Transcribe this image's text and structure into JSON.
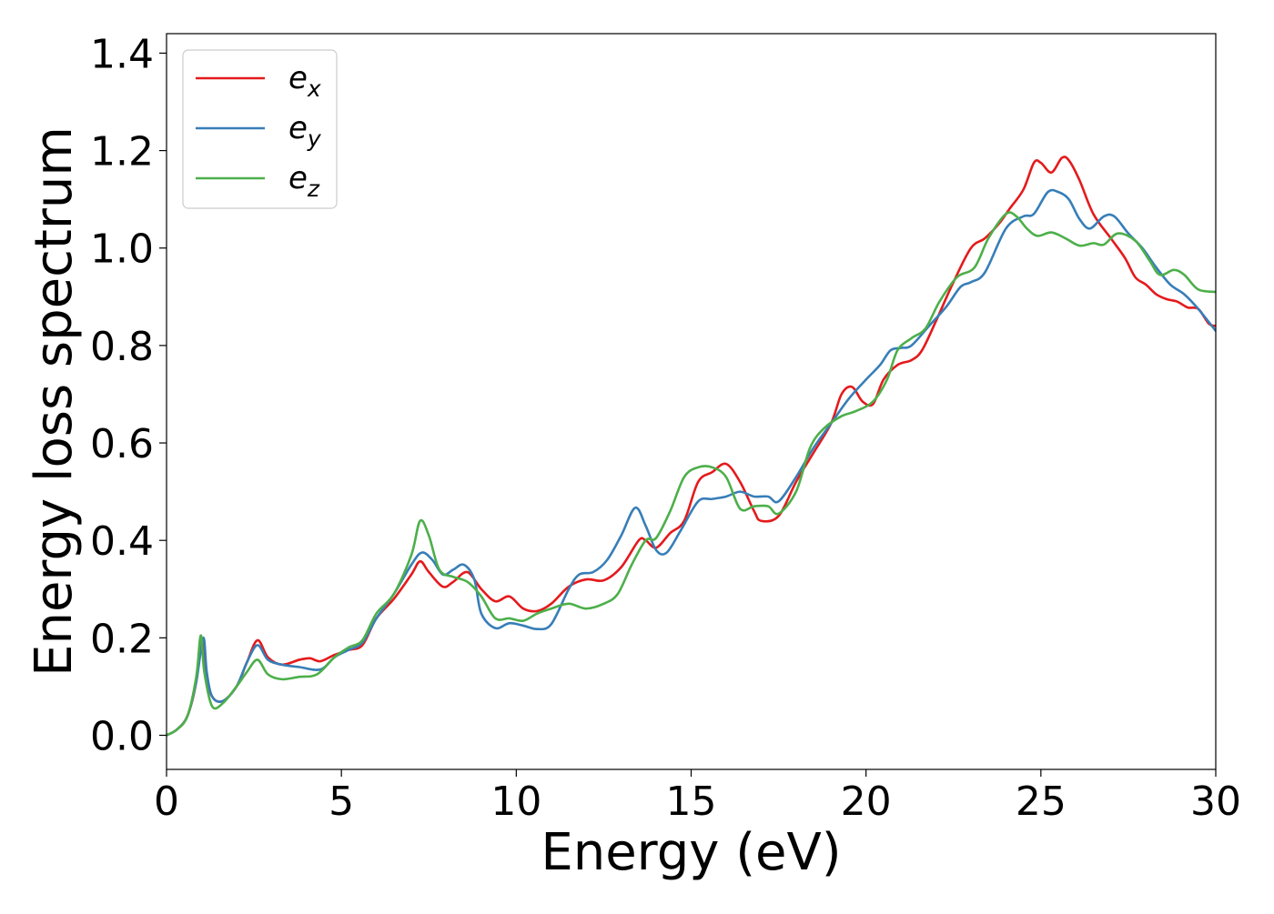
{
  "chart_data": {
    "type": "line",
    "xlabel": "Energy (eV)",
    "ylabel": "Energy loss spectrum",
    "xlim": [
      0,
      30
    ],
    "ylim": [
      -0.07,
      1.44
    ],
    "xticks": [
      "0",
      "5",
      "10",
      "15",
      "20",
      "25",
      "30"
    ],
    "yticks": [
      "0.0",
      "0.2",
      "0.4",
      "0.6",
      "0.8",
      "1.0",
      "1.2",
      "1.4"
    ],
    "grid": false,
    "legend_position": "upper-left",
    "series": [
      {
        "name": "e_x",
        "label_base": "e",
        "label_sub": "x",
        "color": "#e41a1c",
        "points": [
          [
            0,
            0
          ],
          [
            0.3,
            0.012
          ],
          [
            0.6,
            0.04
          ],
          [
            0.85,
            0.11
          ],
          [
            1.0,
            0.2
          ],
          [
            1.1,
            0.13
          ],
          [
            1.3,
            0.08
          ],
          [
            1.6,
            0.07
          ],
          [
            2.0,
            0.1
          ],
          [
            2.3,
            0.15
          ],
          [
            2.6,
            0.195
          ],
          [
            2.9,
            0.16
          ],
          [
            3.3,
            0.145
          ],
          [
            3.8,
            0.155
          ],
          [
            4.1,
            0.158
          ],
          [
            4.4,
            0.152
          ],
          [
            4.8,
            0.165
          ],
          [
            5.2,
            0.175
          ],
          [
            5.6,
            0.185
          ],
          [
            6.0,
            0.24
          ],
          [
            6.5,
            0.28
          ],
          [
            7.0,
            0.33
          ],
          [
            7.25,
            0.357
          ],
          [
            7.5,
            0.335
          ],
          [
            7.9,
            0.305
          ],
          [
            8.2,
            0.315
          ],
          [
            8.6,
            0.335
          ],
          [
            9.0,
            0.3
          ],
          [
            9.4,
            0.275
          ],
          [
            9.8,
            0.285
          ],
          [
            10.2,
            0.26
          ],
          [
            10.6,
            0.255
          ],
          [
            11.0,
            0.27
          ],
          [
            11.5,
            0.305
          ],
          [
            12.0,
            0.32
          ],
          [
            12.5,
            0.318
          ],
          [
            13.0,
            0.345
          ],
          [
            13.5,
            0.4
          ],
          [
            13.7,
            0.4
          ],
          [
            14.0,
            0.385
          ],
          [
            14.4,
            0.415
          ],
          [
            14.8,
            0.44
          ],
          [
            15.2,
            0.52
          ],
          [
            15.6,
            0.54
          ],
          [
            16.0,
            0.557
          ],
          [
            16.4,
            0.52
          ],
          [
            16.8,
            0.46
          ],
          [
            17.0,
            0.44
          ],
          [
            17.5,
            0.45
          ],
          [
            18.0,
            0.52
          ],
          [
            18.5,
            0.58
          ],
          [
            19.0,
            0.64
          ],
          [
            19.3,
            0.7
          ],
          [
            19.6,
            0.715
          ],
          [
            19.9,
            0.685
          ],
          [
            20.2,
            0.68
          ],
          [
            20.5,
            0.73
          ],
          [
            20.9,
            0.76
          ],
          [
            21.3,
            0.77
          ],
          [
            21.6,
            0.79
          ],
          [
            22.0,
            0.85
          ],
          [
            22.5,
            0.93
          ],
          [
            23.0,
            1.0
          ],
          [
            23.4,
            1.02
          ],
          [
            23.8,
            1.05
          ],
          [
            24.1,
            1.08
          ],
          [
            24.5,
            1.12
          ],
          [
            24.8,
            1.175
          ],
          [
            25.0,
            1.175
          ],
          [
            25.3,
            1.155
          ],
          [
            25.6,
            1.185
          ],
          [
            25.8,
            1.18
          ],
          [
            26.1,
            1.14
          ],
          [
            26.5,
            1.07
          ],
          [
            27.0,
            1.02
          ],
          [
            27.4,
            0.98
          ],
          [
            27.7,
            0.94
          ],
          [
            28.0,
            0.925
          ],
          [
            28.3,
            0.905
          ],
          [
            28.6,
            0.895
          ],
          [
            28.9,
            0.89
          ],
          [
            29.2,
            0.878
          ],
          [
            29.5,
            0.875
          ],
          [
            29.8,
            0.845
          ],
          [
            30.0,
            0.84
          ]
        ]
      },
      {
        "name": "e_y",
        "label_base": "e",
        "label_sub": "y",
        "color": "#377eb8",
        "points": [
          [
            0,
            0
          ],
          [
            0.3,
            0.012
          ],
          [
            0.6,
            0.04
          ],
          [
            0.85,
            0.11
          ],
          [
            1.05,
            0.2
          ],
          [
            1.15,
            0.13
          ],
          [
            1.3,
            0.08
          ],
          [
            1.6,
            0.07
          ],
          [
            2.0,
            0.1
          ],
          [
            2.3,
            0.15
          ],
          [
            2.6,
            0.185
          ],
          [
            2.9,
            0.155
          ],
          [
            3.3,
            0.145
          ],
          [
            3.8,
            0.14
          ],
          [
            4.4,
            0.135
          ],
          [
            4.8,
            0.16
          ],
          [
            5.2,
            0.175
          ],
          [
            5.6,
            0.19
          ],
          [
            6.0,
            0.24
          ],
          [
            6.5,
            0.29
          ],
          [
            7.0,
            0.35
          ],
          [
            7.3,
            0.375
          ],
          [
            7.6,
            0.36
          ],
          [
            7.9,
            0.33
          ],
          [
            8.2,
            0.34
          ],
          [
            8.5,
            0.35
          ],
          [
            8.8,
            0.32
          ],
          [
            9.0,
            0.25
          ],
          [
            9.4,
            0.22
          ],
          [
            9.8,
            0.23
          ],
          [
            10.2,
            0.225
          ],
          [
            10.6,
            0.218
          ],
          [
            11.0,
            0.228
          ],
          [
            11.5,
            0.3
          ],
          [
            11.8,
            0.33
          ],
          [
            12.2,
            0.335
          ],
          [
            12.6,
            0.36
          ],
          [
            13.0,
            0.41
          ],
          [
            13.4,
            0.467
          ],
          [
            13.7,
            0.43
          ],
          [
            14.0,
            0.38
          ],
          [
            14.3,
            0.375
          ],
          [
            14.7,
            0.42
          ],
          [
            15.2,
            0.48
          ],
          [
            15.6,
            0.485
          ],
          [
            16.0,
            0.49
          ],
          [
            16.4,
            0.5
          ],
          [
            16.8,
            0.49
          ],
          [
            17.2,
            0.49
          ],
          [
            17.5,
            0.48
          ],
          [
            18.0,
            0.53
          ],
          [
            18.5,
            0.59
          ],
          [
            19.0,
            0.64
          ],
          [
            19.5,
            0.69
          ],
          [
            20.0,
            0.73
          ],
          [
            20.4,
            0.76
          ],
          [
            20.7,
            0.79
          ],
          [
            21.0,
            0.795
          ],
          [
            21.3,
            0.8
          ],
          [
            21.8,
            0.84
          ],
          [
            22.3,
            0.88
          ],
          [
            22.7,
            0.92
          ],
          [
            23.0,
            0.93
          ],
          [
            23.4,
            0.95
          ],
          [
            24.0,
            1.04
          ],
          [
            24.5,
            1.065
          ],
          [
            24.8,
            1.07
          ],
          [
            25.2,
            1.115
          ],
          [
            25.5,
            1.115
          ],
          [
            25.8,
            1.1
          ],
          [
            26.1,
            1.06
          ],
          [
            26.4,
            1.04
          ],
          [
            26.8,
            1.065
          ],
          [
            27.1,
            1.065
          ],
          [
            27.5,
            1.03
          ],
          [
            27.9,
            1.0
          ],
          [
            28.3,
            0.96
          ],
          [
            28.7,
            0.925
          ],
          [
            29.1,
            0.905
          ],
          [
            29.5,
            0.875
          ],
          [
            30.0,
            0.83
          ]
        ]
      },
      {
        "name": "e_z",
        "label_base": "e",
        "label_sub": "z",
        "color": "#4daf4a",
        "points": [
          [
            0,
            0
          ],
          [
            0.3,
            0.012
          ],
          [
            0.6,
            0.04
          ],
          [
            0.85,
            0.12
          ],
          [
            0.98,
            0.205
          ],
          [
            1.08,
            0.13
          ],
          [
            1.3,
            0.06
          ],
          [
            1.6,
            0.065
          ],
          [
            2.0,
            0.1
          ],
          [
            2.3,
            0.13
          ],
          [
            2.6,
            0.155
          ],
          [
            2.9,
            0.125
          ],
          [
            3.3,
            0.115
          ],
          [
            3.8,
            0.12
          ],
          [
            4.3,
            0.125
          ],
          [
            4.8,
            0.16
          ],
          [
            5.2,
            0.18
          ],
          [
            5.6,
            0.195
          ],
          [
            6.0,
            0.25
          ],
          [
            6.5,
            0.29
          ],
          [
            7.0,
            0.37
          ],
          [
            7.25,
            0.44
          ],
          [
            7.5,
            0.41
          ],
          [
            7.8,
            0.34
          ],
          [
            8.2,
            0.325
          ],
          [
            8.6,
            0.315
          ],
          [
            9.0,
            0.285
          ],
          [
            9.4,
            0.24
          ],
          [
            9.8,
            0.24
          ],
          [
            10.2,
            0.235
          ],
          [
            10.6,
            0.25
          ],
          [
            11.0,
            0.26
          ],
          [
            11.5,
            0.27
          ],
          [
            12.0,
            0.26
          ],
          [
            12.5,
            0.27
          ],
          [
            12.9,
            0.29
          ],
          [
            13.3,
            0.35
          ],
          [
            13.7,
            0.4
          ],
          [
            14.0,
            0.405
          ],
          [
            14.4,
            0.46
          ],
          [
            14.8,
            0.53
          ],
          [
            15.2,
            0.55
          ],
          [
            15.6,
            0.55
          ],
          [
            16.0,
            0.53
          ],
          [
            16.4,
            0.465
          ],
          [
            16.8,
            0.47
          ],
          [
            17.2,
            0.47
          ],
          [
            17.5,
            0.455
          ],
          [
            18.0,
            0.5
          ],
          [
            18.4,
            0.59
          ],
          [
            18.8,
            0.63
          ],
          [
            19.3,
            0.655
          ],
          [
            19.7,
            0.665
          ],
          [
            20.2,
            0.685
          ],
          [
            20.6,
            0.73
          ],
          [
            20.9,
            0.79
          ],
          [
            21.3,
            0.815
          ],
          [
            21.7,
            0.835
          ],
          [
            22.1,
            0.89
          ],
          [
            22.6,
            0.94
          ],
          [
            23.1,
            0.96
          ],
          [
            23.5,
            1.02
          ],
          [
            24.0,
            1.07
          ],
          [
            24.3,
            1.065
          ],
          [
            24.6,
            1.04
          ],
          [
            24.9,
            1.025
          ],
          [
            25.3,
            1.032
          ],
          [
            25.7,
            1.02
          ],
          [
            26.1,
            1.005
          ],
          [
            26.5,
            1.01
          ],
          [
            26.8,
            1.007
          ],
          [
            27.2,
            1.03
          ],
          [
            27.7,
            1.015
          ],
          [
            28.1,
            0.975
          ],
          [
            28.4,
            0.945
          ],
          [
            28.8,
            0.955
          ],
          [
            29.1,
            0.945
          ],
          [
            29.5,
            0.915
          ],
          [
            30.0,
            0.91
          ]
        ]
      }
    ]
  }
}
